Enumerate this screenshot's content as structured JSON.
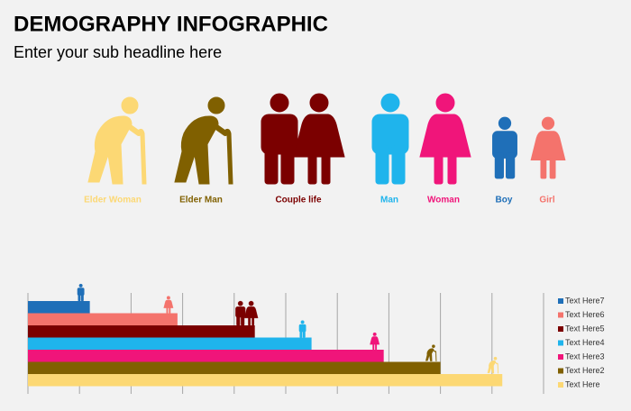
{
  "header": {
    "title": "DEMOGRAPHY INFOGRAPHIC",
    "subtitle": "Enter your sub headline here"
  },
  "figures": [
    {
      "label": "Elder Woman",
      "color": "#fcd874"
    },
    {
      "label": "Elder Man",
      "color": "#806000"
    },
    {
      "label": "Couple life",
      "color": "#7b0000"
    },
    {
      "label": "Man",
      "color": "#1fb4ec"
    },
    {
      "label": "Woman",
      "color": "#f0157a"
    },
    {
      "label": "Boy",
      "color": "#1f6fb8"
    },
    {
      "label": "Girl",
      "color": "#f4736c"
    }
  ],
  "chart_data": {
    "type": "bar",
    "orientation": "horizontal",
    "categories": [
      "Text Here7",
      "Text Here6",
      "Text Here5",
      "Text Here4",
      "Text Here3",
      "Text Here2",
      "Text Here"
    ],
    "values": [
      1.2,
      2.9,
      4.4,
      5.5,
      6.9,
      8.0,
      9.2
    ],
    "colors": [
      "#1f6fb8",
      "#f4736c",
      "#7b0000",
      "#1fb4ec",
      "#f0157a",
      "#806000",
      "#fcd874"
    ],
    "xlim": [
      0,
      10
    ],
    "xticks": [
      0,
      1,
      2,
      3,
      4,
      5,
      6,
      7,
      8,
      9,
      10
    ],
    "grid": true,
    "legend": "right"
  }
}
